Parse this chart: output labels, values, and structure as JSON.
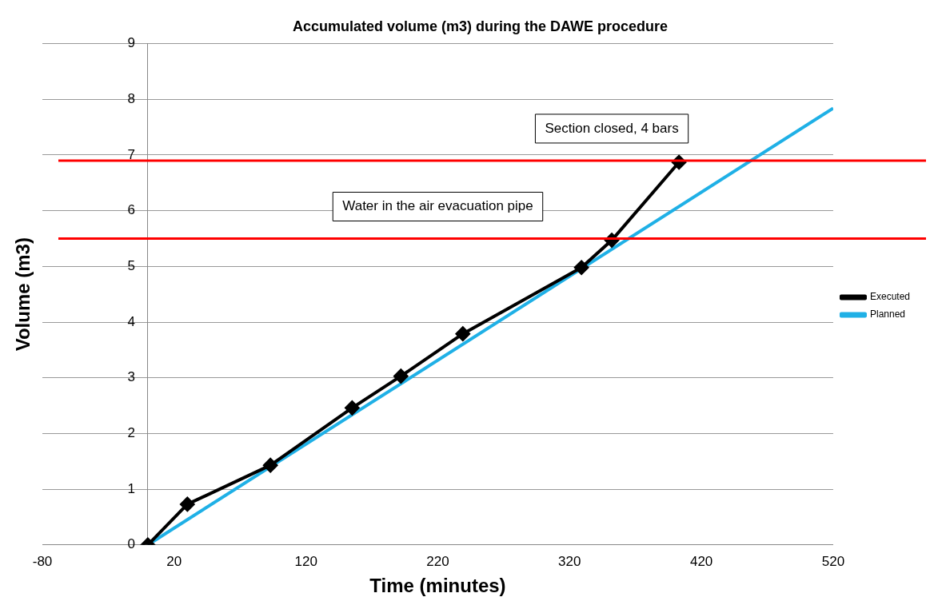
{
  "chart_data": {
    "type": "line",
    "title": "Accumulated volume (m3) during the DAWE procedure",
    "xlabel": "Time (minutes)",
    "ylabel": "Volume (m3)",
    "xlim": [
      -80,
      520
    ],
    "xticks": [
      -80,
      20,
      120,
      220,
      320,
      420,
      520
    ],
    "ylim": [
      0,
      9
    ],
    "yticks": [
      0,
      1,
      2,
      3,
      4,
      5,
      6,
      7,
      8,
      9
    ],
    "grid": "y",
    "legend": "right",
    "series": [
      {
        "name": "Executed",
        "color": "#000000",
        "marker": "diamond",
        "x": [
          0,
          30,
          93,
          155,
          192,
          239,
          329,
          352,
          403
        ],
        "values": [
          0,
          0.73,
          1.43,
          2.46,
          3.03,
          3.79,
          4.98,
          5.47,
          6.87
        ]
      },
      {
        "name": "Planned",
        "color": "#1fb0e6",
        "marker": "none",
        "x": [
          0,
          520
        ],
        "values": [
          0,
          7.84
        ]
      }
    ],
    "ref_lines": [
      {
        "axis": "y",
        "value": 6.9,
        "label": "Section closed, 4 bars",
        "color": "#ff0000"
      },
      {
        "axis": "y",
        "value": 5.5,
        "label": "Water in the air evacuation pipe",
        "color": "#ff0000"
      }
    ]
  }
}
